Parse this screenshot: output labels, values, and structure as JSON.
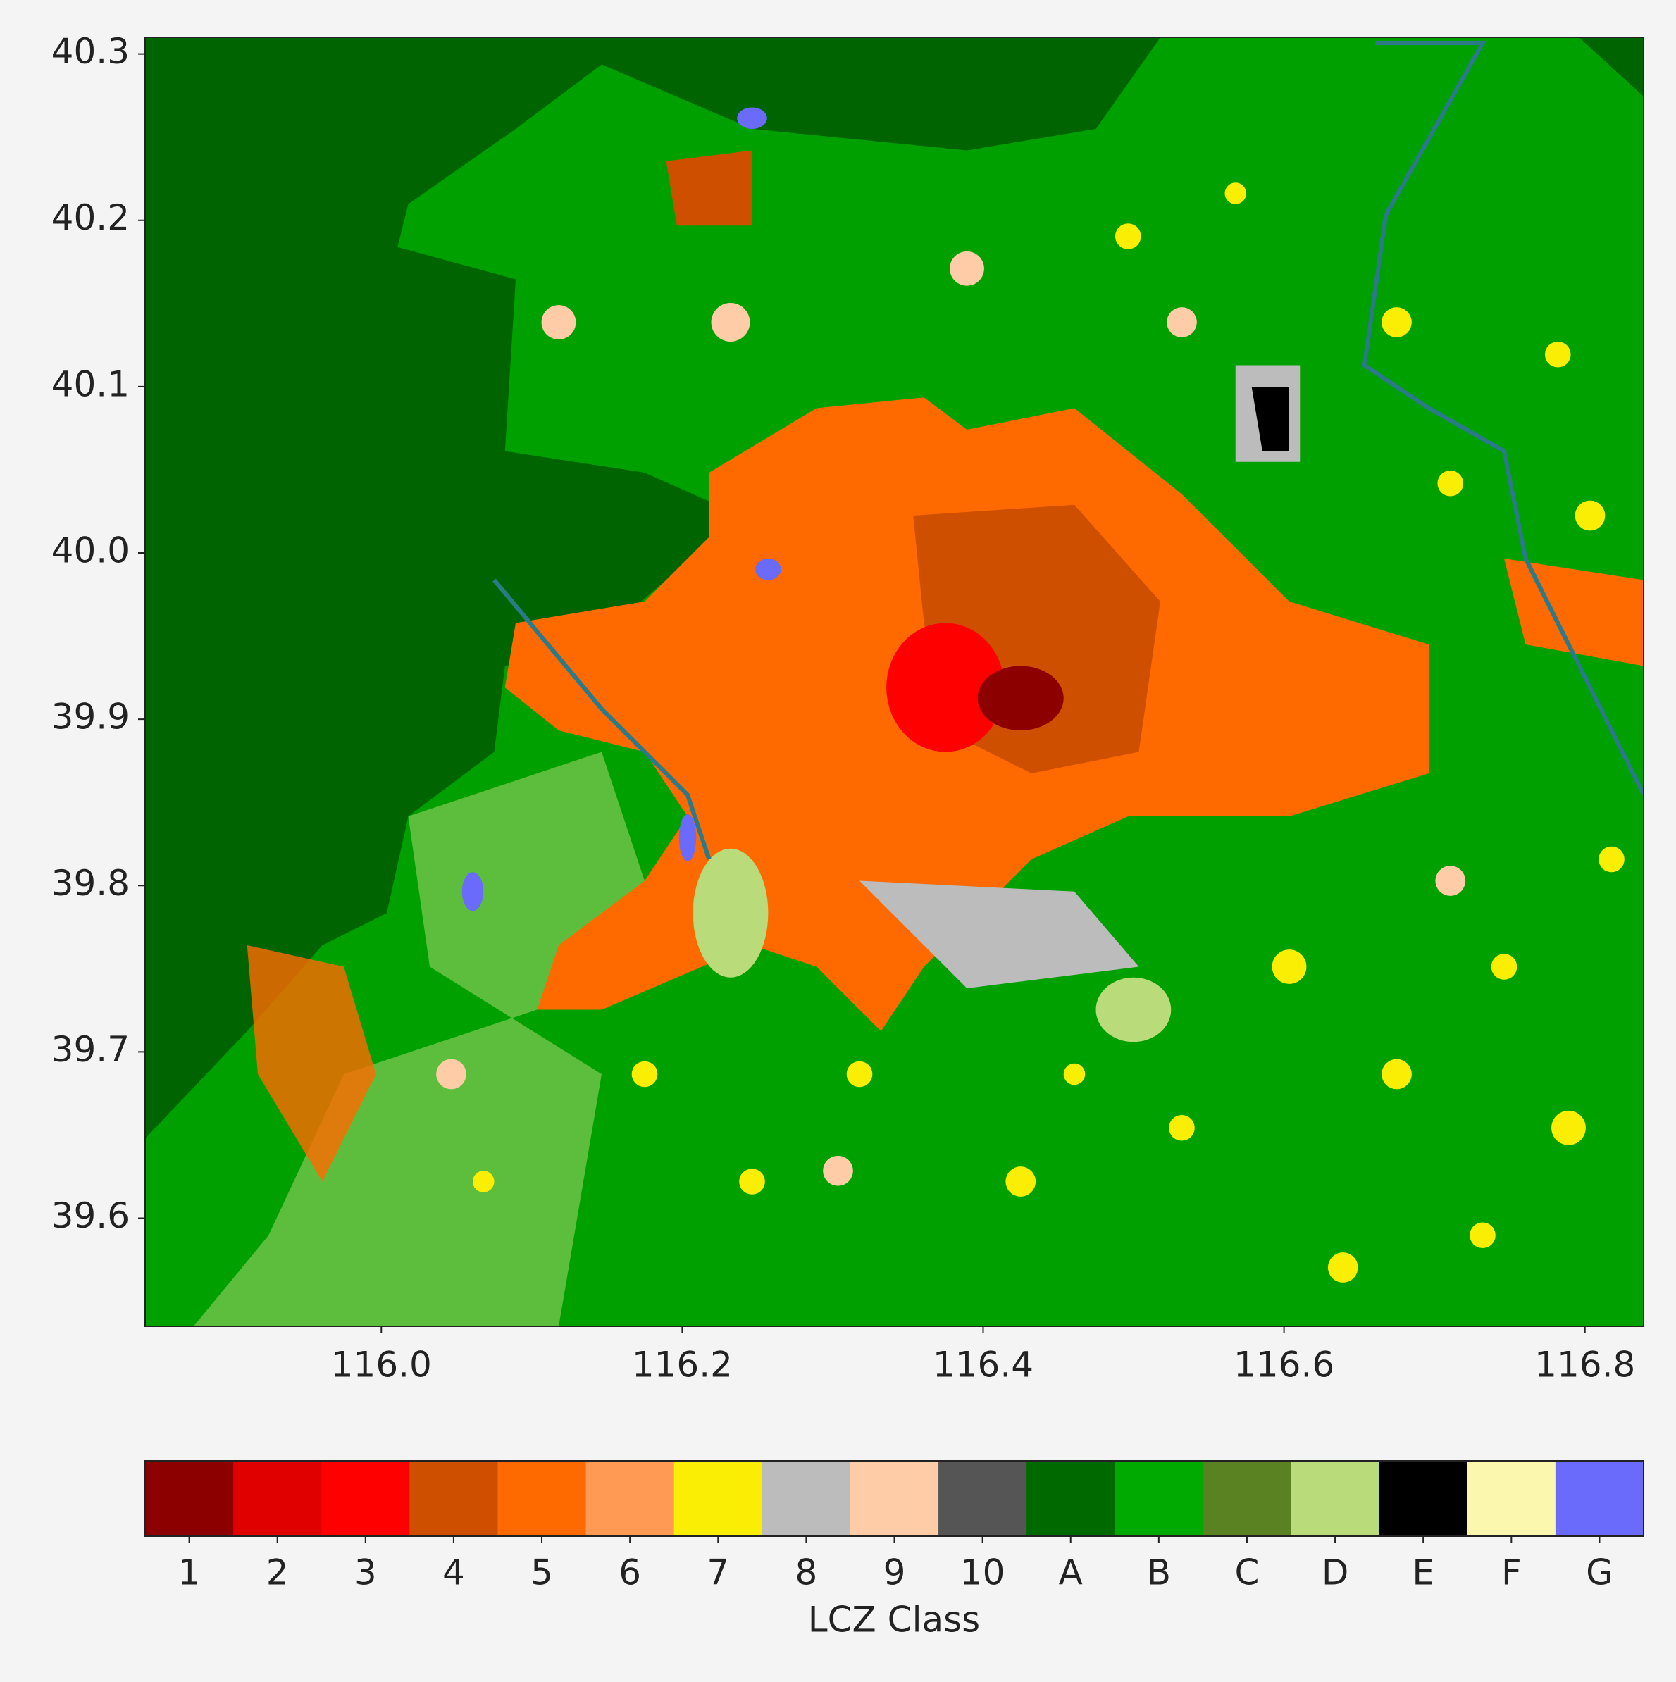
{
  "chart_data": {
    "type": "map",
    "xlim": [
      115.843,
      116.839
    ],
    "ylim": [
      39.535,
      40.31
    ],
    "xticks": [
      {
        "value": 116.0,
        "label": "116.0"
      },
      {
        "value": 116.2,
        "label": "116.2"
      },
      {
        "value": 116.4,
        "label": "116.4"
      },
      {
        "value": 116.6,
        "label": "116.6"
      },
      {
        "value": 116.8,
        "label": "116.8"
      }
    ],
    "yticks": [
      {
        "value": 39.6,
        "label": "39.6"
      },
      {
        "value": 39.7,
        "label": "39.7"
      },
      {
        "value": 39.8,
        "label": "39.8"
      },
      {
        "value": 39.9,
        "label": "39.9"
      },
      {
        "value": 40.0,
        "label": "40.0"
      },
      {
        "value": 40.1,
        "label": "40.1"
      },
      {
        "value": 40.2,
        "label": "40.2"
      },
      {
        "value": 40.3,
        "label": "40.3"
      }
    ],
    "colorbar": {
      "label": "LCZ Class",
      "categories": [
        "1",
        "2",
        "3",
        "4",
        "5",
        "6",
        "7",
        "8",
        "9",
        "10",
        "A",
        "B",
        "C",
        "D",
        "E",
        "F",
        "G"
      ],
      "colors": [
        "#8c0000",
        "#e00000",
        "#ff0000",
        "#cf4f00",
        "#ff6a00",
        "#ff9a55",
        "#faee05",
        "#bcbcbc",
        "#ffcca8",
        "#555555",
        "#006a00",
        "#00aa00",
        "#5a8222",
        "#b9db79",
        "#000000",
        "#fbf7ae",
        "#6a6afb"
      ]
    }
  }
}
